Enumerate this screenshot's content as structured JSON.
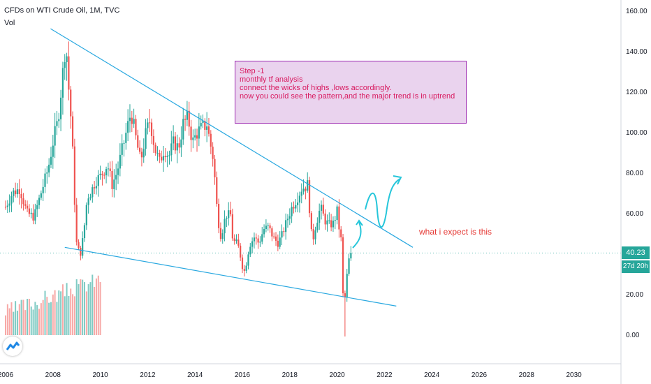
{
  "header": {
    "title": "CFDs on WTI Crude Oil, 1M, TVC",
    "indicator": "Vol"
  },
  "note": {
    "lines": [
      "Step -1",
      "monthly tf analysis",
      "connect the wicks of highs ,lows accordingly.",
      "now you could see the pattern,and the major trend is in uptrend"
    ]
  },
  "annotation": "what i expect is this",
  "price_tag": "40.23",
  "countdown_tag": "27d 20h",
  "colors": {
    "up": "#26a69a",
    "down": "#ef5350",
    "trendline": "#29a8e0",
    "arrow": "#26c6da",
    "vol_up": "#80cbc4",
    "vol_down": "#f7a9a7"
  },
  "chart_data": {
    "type": "candlestick",
    "x_tick_labels": [
      "2006",
      "2008",
      "2010",
      "2012",
      "2014",
      "2016",
      "2018",
      "2020",
      "2022",
      "2024",
      "2026",
      "2028",
      "2030"
    ],
    "y_tick_labels": [
      "0.00",
      "20.00",
      "40.00",
      "60.00",
      "80.00",
      "100.00",
      "120.00",
      "140.00",
      "160.00"
    ],
    "ylim": [
      -15,
      165
    ],
    "xlim": [
      2006.0,
      2032.0
    ],
    "grid": false,
    "last_price": 40.23,
    "series": [
      {
        "values": [
          [
            2006.0,
            63
          ],
          [
            2006.3,
            70
          ],
          [
            2006.6,
            72
          ],
          [
            2006.9,
            60
          ],
          [
            2007.2,
            58
          ],
          [
            2007.5,
            70
          ],
          [
            2007.8,
            82
          ],
          [
            2008.0,
            95
          ],
          [
            2008.2,
            105
          ],
          [
            2008.4,
            127
          ],
          [
            2008.5,
            140
          ],
          [
            2008.55,
            145
          ],
          [
            2008.65,
            124
          ],
          [
            2008.8,
            100
          ],
          [
            2008.9,
            70
          ],
          [
            2009.0,
            45
          ],
          [
            2009.15,
            39
          ],
          [
            2009.3,
            50
          ],
          [
            2009.45,
            68
          ],
          [
            2009.6,
            70
          ],
          [
            2009.8,
            76
          ],
          [
            2010.0,
            78
          ],
          [
            2010.3,
            84
          ],
          [
            2010.5,
            74
          ],
          [
            2010.7,
            80
          ],
          [
            2010.9,
            90
          ],
          [
            2011.1,
            100
          ],
          [
            2011.3,
            110
          ],
          [
            2011.5,
            97
          ],
          [
            2011.7,
            85
          ],
          [
            2011.9,
            98
          ],
          [
            2012.1,
            106
          ],
          [
            2012.3,
            92
          ],
          [
            2012.5,
            85
          ],
          [
            2012.7,
            92
          ],
          [
            2012.9,
            88
          ],
          [
            2013.1,
            95
          ],
          [
            2013.3,
            92
          ],
          [
            2013.5,
            104
          ],
          [
            2013.7,
            107
          ],
          [
            2013.9,
            95
          ],
          [
            2014.1,
            100
          ],
          [
            2014.3,
            102
          ],
          [
            2014.5,
            104
          ],
          [
            2014.6,
            97
          ],
          [
            2014.75,
            88
          ],
          [
            2014.85,
            75
          ],
          [
            2014.95,
            58
          ],
          [
            2015.1,
            48
          ],
          [
            2015.3,
            59
          ],
          [
            2015.5,
            59
          ],
          [
            2015.6,
            46
          ],
          [
            2015.8,
            45
          ],
          [
            2015.95,
            37
          ],
          [
            2016.05,
            30
          ],
          [
            2016.15,
            34
          ],
          [
            2016.3,
            44
          ],
          [
            2016.5,
            48
          ],
          [
            2016.7,
            45
          ],
          [
            2016.9,
            52
          ],
          [
            2017.1,
            53
          ],
          [
            2017.3,
            48
          ],
          [
            2017.5,
            45
          ],
          [
            2017.7,
            50
          ],
          [
            2017.9,
            57
          ],
          [
            2018.1,
            63
          ],
          [
            2018.3,
            67
          ],
          [
            2018.5,
            72
          ],
          [
            2018.65,
            73
          ],
          [
            2018.75,
            74
          ],
          [
            2018.85,
            60
          ],
          [
            2018.95,
            45
          ],
          [
            2019.1,
            54
          ],
          [
            2019.3,
            63
          ],
          [
            2019.5,
            56
          ],
          [
            2019.7,
            54
          ],
          [
            2019.85,
            55
          ],
          [
            2020.0,
            61
          ],
          [
            2020.1,
            51
          ],
          [
            2020.2,
            45
          ],
          [
            2020.25,
            20
          ],
          [
            2020.35,
            18
          ],
          [
            2020.45,
            35
          ],
          [
            2020.55,
            39
          ],
          [
            2020.65,
            40.23
          ]
        ]
      }
    ],
    "trendlines": [
      {
        "from": [
          2007.9,
          151
        ],
        "to": [
          2023.2,
          43
        ]
      },
      {
        "from": [
          2008.5,
          43
        ],
        "to": [
          2022.5,
          14
        ]
      }
    ]
  }
}
